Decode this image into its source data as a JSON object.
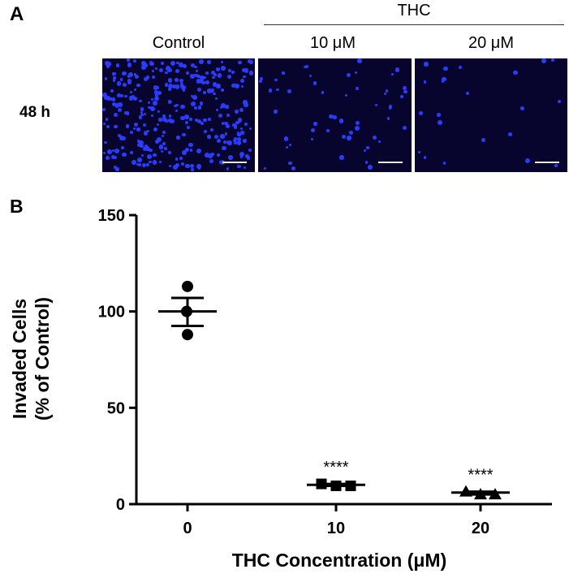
{
  "panel_a": {
    "letter": "A",
    "group_label": "THC",
    "row_label": "48 h",
    "columns": [
      "Control",
      "10 μM",
      "20 μM"
    ],
    "cell_color": "#2a3cff",
    "background_color": "#07052e"
  },
  "chart_data": {
    "type": "scatter",
    "panel_letter": "B",
    "categories": [
      "0",
      "10",
      "20"
    ],
    "xlabel": "THC Concentration (μM)",
    "ylabel_lines": [
      "Invaded Cells",
      "(% of Control)"
    ],
    "ylim": [
      0,
      150
    ],
    "yticks": [
      0,
      50,
      100,
      150
    ],
    "series": [
      {
        "category": "0",
        "marker": "circle",
        "points": [
          113,
          100,
          88
        ],
        "mean": 100,
        "sem_upper": 107,
        "sem_lower": 92.5
      },
      {
        "category": "10",
        "marker": "square",
        "points": [
          10.5,
          9.5,
          9.5
        ],
        "mean": 10,
        "sem_upper": 10.5,
        "sem_lower": 9.5,
        "significance": "****"
      },
      {
        "category": "20",
        "marker": "triangle",
        "points": [
          6.5,
          5,
          5
        ],
        "mean": 6,
        "sem_upper": 6.5,
        "sem_lower": 5,
        "significance": "****"
      }
    ]
  }
}
